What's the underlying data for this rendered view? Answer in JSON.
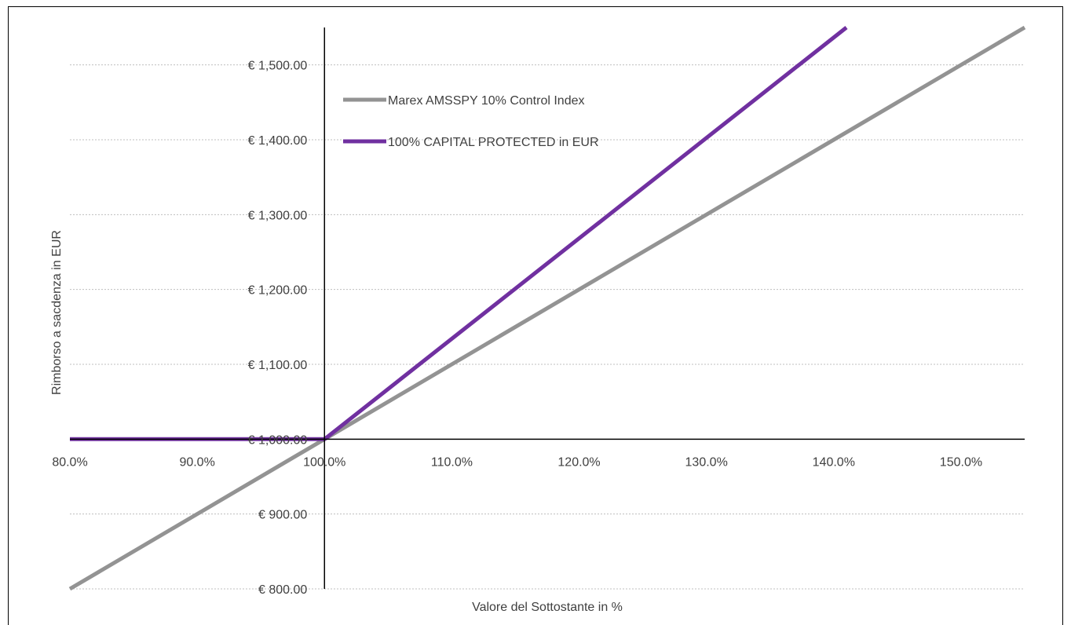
{
  "chart_data": {
    "type": "line",
    "xlabel": "Valore del Sottostante in %",
    "ylabel": "Rimborso a sacdenza in EUR",
    "xlim": [
      0.8,
      1.55
    ],
    "ylim": [
      800,
      1550
    ],
    "x_ticks": [
      0.8,
      0.9,
      1.0,
      1.1,
      1.2,
      1.3,
      1.4,
      1.5
    ],
    "x_tick_labels": [
      "80.0%",
      "90.0%",
      "100.0%",
      "110.0%",
      "120.0%",
      "130.0%",
      "140.0%",
      "150.0%"
    ],
    "y_ticks": [
      800,
      900,
      1000,
      1100,
      1200,
      1300,
      1400,
      1500
    ],
    "y_tick_labels": [
      "€ 800.00",
      "€ 900.00",
      "€ 1,000.00",
      "€ 1,100.00",
      "€ 1,200.00",
      "€ 1,300.00",
      "€ 1,400.00",
      "€ 1,500.00"
    ],
    "x_axis_crosses_y": 1000,
    "y_axis_crosses_x": 1.0,
    "grid": true,
    "legend_position": "top-left",
    "series": [
      {
        "name": "Marex AMSSPY 10% Control Index",
        "color": "#939393",
        "points": [
          [
            0.8,
            800
          ],
          [
            1.0,
            1000
          ],
          [
            1.55,
            1550
          ]
        ]
      },
      {
        "name": "100% CAPITAL PROTECTED in EUR",
        "color": "#7030A0",
        "points": [
          [
            0.8,
            1000
          ],
          [
            0.95,
            1000
          ],
          [
            1.0,
            1000
          ],
          [
            1.41,
            1550
          ]
        ]
      }
    ]
  }
}
